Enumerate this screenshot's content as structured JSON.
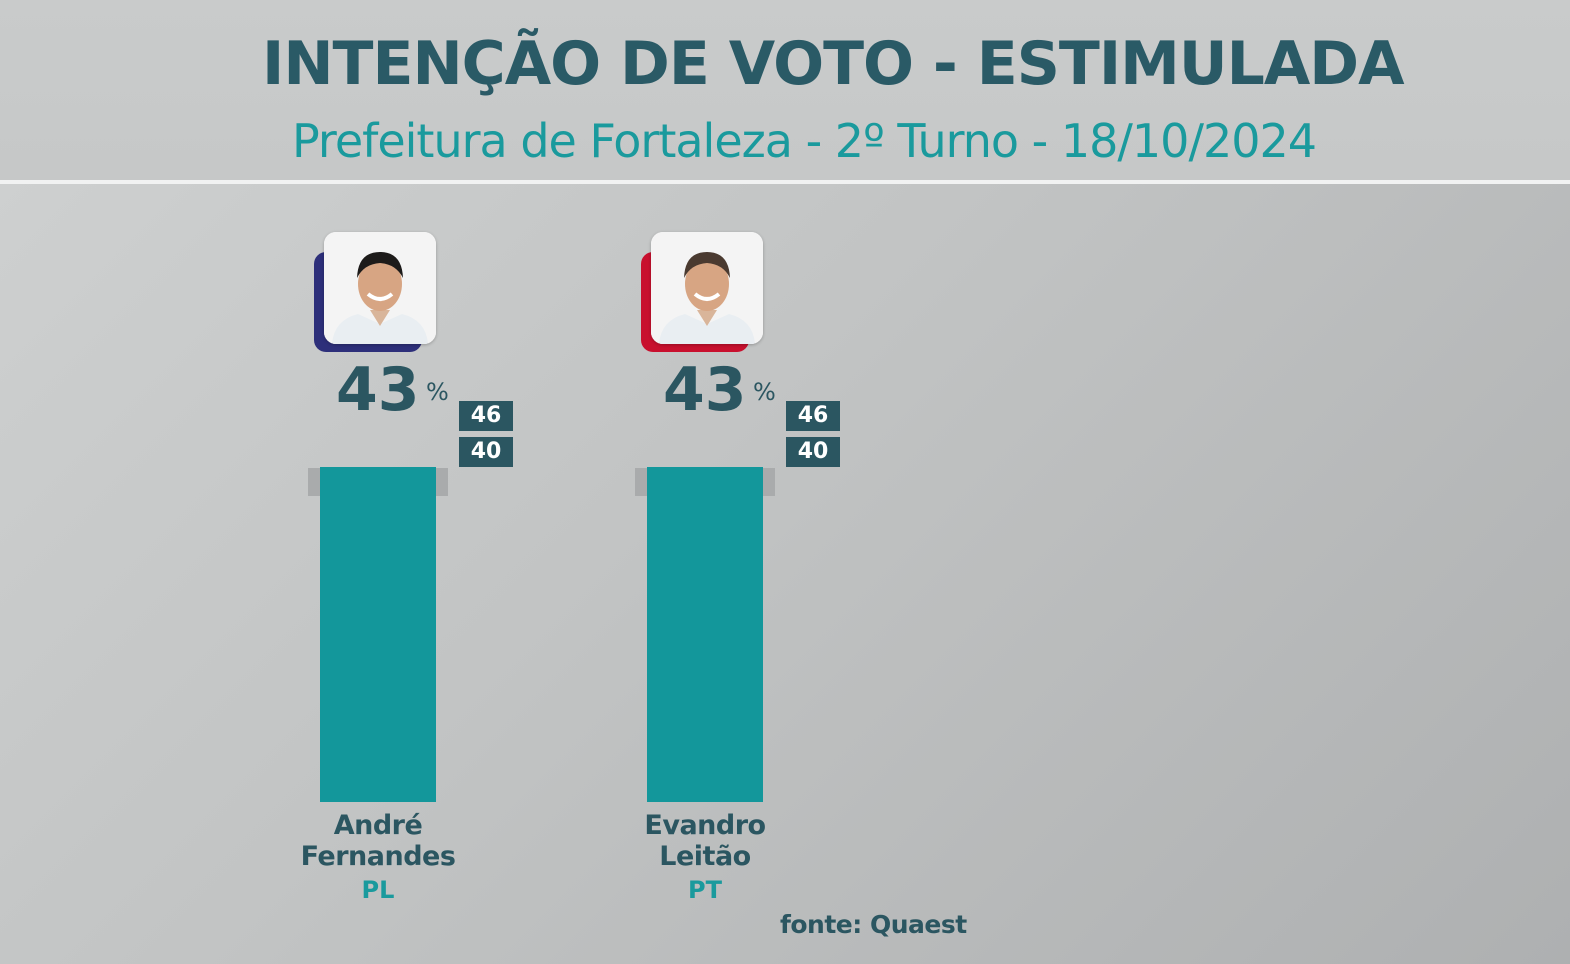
{
  "header": {
    "title": "INTENÇÃO DE VOTO - ESTIMULADA",
    "subtitle": "Prefeitura de Fortaleza - 2º Turno - 18/10/2024"
  },
  "source": "fonte: Quaest",
  "colors": {
    "title": "#2a5a66",
    "subtitle": "#1a9a9d",
    "bar": "#13979b",
    "interval_band": "#a9abac",
    "label_box": "#2b5661",
    "pl_accent": "#2d2f7a",
    "pt_accent": "#c8102e"
  },
  "chart_data": {
    "type": "bar",
    "title": "INTENÇÃO DE VOTO - ESTIMULADA",
    "subtitle": "Prefeitura de Fortaleza - 2º Turno - 18/10/2024",
    "unit": "%",
    "ylim": [
      0,
      46
    ],
    "grid": false,
    "categories": [
      "André Fernandes",
      "Evandro Leitão"
    ],
    "values": [
      43,
      43
    ],
    "candidates": [
      {
        "name_line1": "André",
        "name_line2": "Fernandes",
        "party": "PL",
        "value": 43,
        "value_label": "43",
        "unit": "%",
        "upper": 46,
        "upper_label": "46",
        "lower": 40,
        "lower_label": "40",
        "photo_icon": "candidate-photo-icon",
        "accent": "#2d2f7a"
      },
      {
        "name_line1": "Evandro",
        "name_line2": "Leitão",
        "party": "PT",
        "value": 43,
        "value_label": "43",
        "unit": "%",
        "upper": 46,
        "upper_label": "46",
        "lower": 40,
        "lower_label": "40",
        "photo_icon": "candidate-photo-icon",
        "accent": "#c8102e"
      }
    ]
  }
}
